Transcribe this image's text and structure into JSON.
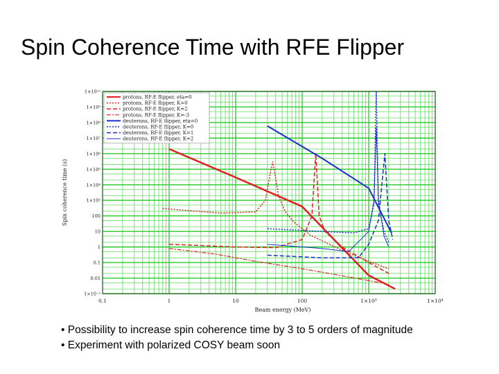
{
  "slide": {
    "title": "Spin Coherence Time  with RFE Flipper",
    "bullets": [
      "• Possibility to increase spin coherence time by 3 to 5 orders of magnitude",
      "• Experiment with polarized COSY beam soon"
    ]
  },
  "chart_data": {
    "type": "line",
    "title": "",
    "xlabel": "Beam energy (MeV)",
    "ylabel": "Spin coherence time (s)",
    "x_scale": "log",
    "y_scale": "log",
    "xlim": [
      0.1,
      10000
    ],
    "ylim": [
      0.001,
      10000000000
    ],
    "grid": true,
    "legend_position": "top-left",
    "x_ticks": [
      {
        "value": 0.1,
        "label": "0.1"
      },
      {
        "value": 1,
        "label": "1"
      },
      {
        "value": 10,
        "label": "10"
      },
      {
        "value": 100,
        "label": "100"
      },
      {
        "value": 1000,
        "label": "1×10³"
      },
      {
        "value": 10000,
        "label": "1×10⁴"
      }
    ],
    "y_ticks": [
      {
        "value": 0.001,
        "label": "1×10⁻³"
      },
      {
        "value": 0.01,
        "label": "0.01"
      },
      {
        "value": 0.1,
        "label": "0.1"
      },
      {
        "value": 1,
        "label": "1"
      },
      {
        "value": 10,
        "label": "10"
      },
      {
        "value": 100,
        "label": "100"
      },
      {
        "value": 1000,
        "label": "1×10³"
      },
      {
        "value": 10000,
        "label": "1×10⁴"
      },
      {
        "value": 100000,
        "label": "1×10⁵"
      },
      {
        "value": 1000000,
        "label": "1×10⁶"
      },
      {
        "value": 10000000,
        "label": "1×10⁷"
      },
      {
        "value": 100000000,
        "label": "1×10⁸"
      },
      {
        "value": 1000000000,
        "label": "1×10⁹"
      },
      {
        "value": 10000000000,
        "label": "1×10¹⁰"
      }
    ],
    "series": [
      {
        "name": "protons, RF-E flipper, eta=0",
        "color": "#e02020",
        "dash": "solid",
        "width": 2.5,
        "points": [
          [
            1,
            2000000
          ],
          [
            10,
            30000
          ],
          [
            100,
            400
          ],
          [
            1000,
            0.015
          ],
          [
            2500,
            0.002
          ]
        ]
      },
      {
        "name": "protons, RF-E flipper, K=0",
        "color": "#e02020",
        "dash": "dotted",
        "width": 1.5,
        "points": [
          [
            0.8,
            300
          ],
          [
            6,
            150
          ],
          [
            20,
            180
          ],
          [
            28,
            1000
          ],
          [
            33,
            50000
          ],
          [
            36,
            300000
          ],
          [
            39,
            50000
          ],
          [
            44,
            2000
          ],
          [
            55,
            200
          ],
          [
            75,
            40
          ],
          [
            130,
            6
          ],
          [
            400,
            0.6
          ],
          [
            1000,
            0.12
          ],
          [
            2000,
            0.04
          ]
        ]
      },
      {
        "name": "protons, RF-E flipper, K=2",
        "color": "#e02020",
        "dash": "dashed",
        "width": 1.5,
        "points": [
          [
            1,
            1.5
          ],
          [
            10,
            1
          ],
          [
            40,
            0.9
          ],
          [
            100,
            3
          ],
          [
            140,
            100
          ],
          [
            160,
            1000000
          ],
          [
            180,
            100
          ],
          [
            220,
            10
          ],
          [
            400,
            1
          ],
          [
            1000,
            0.1
          ],
          [
            2000,
            0.02
          ]
        ]
      },
      {
        "name": "protons, RF-E flipper, K=-3",
        "color": "#e02020",
        "dash": "dashdot",
        "width": 1.2,
        "points": [
          [
            1,
            0.8
          ],
          [
            5,
            0.35
          ],
          [
            20,
            0.12
          ],
          [
            100,
            0.04
          ],
          [
            500,
            0.012
          ],
          [
            2000,
            0.004
          ]
        ]
      },
      {
        "name": "deuterons, RF-E flipper, eta=0",
        "color": "#1a2fd0",
        "dash": "solid",
        "width": 2,
        "points": [
          [
            30,
            60000000
          ],
          [
            200,
            500000
          ],
          [
            1000,
            6000
          ],
          [
            2200,
            8
          ]
        ]
      },
      {
        "name": "deuterons, RF-E flipper, K=0",
        "color": "#1a2fd0",
        "dash": "dotted",
        "width": 1.5,
        "points": [
          [
            30,
            15
          ],
          [
            200,
            10
          ],
          [
            600,
            8
          ],
          [
            1000,
            15
          ],
          [
            1200,
            600
          ],
          [
            1300,
            10000000000
          ],
          [
            1400,
            600
          ],
          [
            1700,
            10
          ],
          [
            2000,
            2
          ]
        ]
      },
      {
        "name": "deuterons, RF-E flipper, K=1",
        "color": "#1a2fd0",
        "dash": "dashed",
        "width": 1.5,
        "points": [
          [
            30,
            0.3
          ],
          [
            200,
            0.2
          ],
          [
            700,
            0.2
          ],
          [
            1000,
            1.5
          ],
          [
            1400,
            50
          ],
          [
            1750,
            1000000
          ],
          [
            2000,
            50
          ],
          [
            2300,
            3
          ]
        ]
      },
      {
        "name": "deuterons, RF-E flipper, K=2",
        "color": "#1a2fd0",
        "dash": "solid",
        "width": 1,
        "points": [
          [
            30,
            1.5
          ],
          [
            200,
            0.8
          ],
          [
            500,
            0.5
          ],
          [
            1000,
            10
          ],
          [
            1200,
            1000
          ],
          [
            1300,
            50000000
          ],
          [
            1400,
            1000
          ],
          [
            1700,
            5
          ],
          [
            2000,
            1
          ]
        ]
      }
    ]
  }
}
